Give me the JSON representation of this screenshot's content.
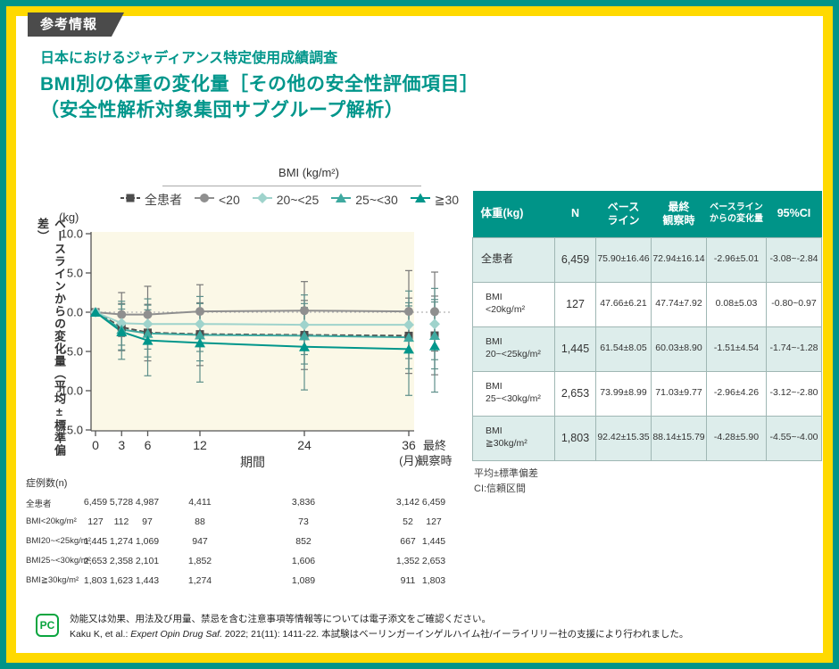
{
  "page": {
    "badge": "参考情報",
    "title_line1": "日本におけるジャディアンス特定使用成績調査",
    "title_line2": "BMI別の体重の変化量［その他の安全性評価項目］",
    "title_line3": "（安全性解析対象集団サブグループ解析）",
    "colors": {
      "teal": "#009488",
      "yellow": "#ffd900",
      "badge_gray": "#4b4b4b",
      "chart_bg": "#fbf8e7",
      "row_alt": "#ddedeb"
    },
    "footer": {
      "icon_label": "PC",
      "line1": "効能又は効果、用法及び用量、禁忌を含む注意事項等情報等については電子添文をご確認ください。",
      "ref_prefix": "Kaku K, et al.: ",
      "ref_italic": "Expert Opin Drug Saf.",
      "ref_suffix": " 2022; 21(11): 1411-22.  本試験はベーリンガーインゲルハイム社/イーライリリー社の支援により行われました。"
    }
  },
  "chart_data": {
    "type": "line",
    "legend_title": "BMI (kg/m²)",
    "xlabel": "期間",
    "x_unit": "(月)",
    "ylabel": "ベースラインからの変化量（平均±標準偏差）",
    "y_unit": "(kg)",
    "ylim": [
      -15,
      10
    ],
    "yticks": [
      10.0,
      5.0,
      0.0,
      -5.0,
      -10.0,
      -15.0
    ],
    "x_months": [
      0,
      3,
      6,
      12,
      24,
      36
    ],
    "final_label_lines": [
      "最終",
      "観察時"
    ],
    "series": [
      {
        "name": "全患者",
        "marker": "square",
        "color": "#4d4d4d",
        "line": "dashed",
        "means": [
          0,
          -1.9,
          -2.6,
          -2.8,
          -2.9,
          -3.0
        ],
        "final_mean": -2.96,
        "sd": [
          0,
          3.0,
          3.6,
          4.0,
          4.4,
          4.8
        ],
        "final_sd": 5.01
      },
      {
        "name": "<20",
        "marker": "circle",
        "color": "#8f8f8f",
        "line": "solid",
        "means": [
          0,
          -0.3,
          -0.3,
          0.1,
          0.2,
          0.1
        ],
        "final_mean": 0.08,
        "sd": [
          0,
          2.8,
          3.6,
          3.4,
          3.7,
          5.2
        ],
        "final_sd": 5.03
      },
      {
        "name": "20~<25",
        "marker": "diamond",
        "color": "#9fd3cc",
        "line": "solid",
        "means": [
          0,
          -1.4,
          -1.5,
          -1.5,
          -1.6,
          -1.6
        ],
        "final_mean": -1.51,
        "sd": [
          0,
          2.8,
          3.2,
          3.5,
          3.8,
          4.3
        ],
        "final_sd": 4.54
      },
      {
        "name": "25~<30",
        "marker": "triangle",
        "color": "#3fa9a0",
        "line": "solid",
        "means": [
          0,
          -2.2,
          -2.7,
          -2.9,
          -3.0,
          -3.2
        ],
        "final_mean": -2.96,
        "sd": [
          0,
          2.6,
          3.0,
          3.3,
          3.6,
          4.0
        ],
        "final_sd": 4.26
      },
      {
        "name": "≧30",
        "marker": "triangle",
        "color": "#00968b",
        "line": "solid",
        "means": [
          0,
          -2.5,
          -3.6,
          -3.9,
          -4.4,
          -4.7
        ],
        "final_mean": -4.28,
        "sd": [
          0,
          3.5,
          4.5,
          5.0,
          5.5,
          5.9
        ],
        "final_sd": 5.9
      }
    ]
  },
  "n_table": {
    "title": "症例数(n)",
    "rows": [
      {
        "label": "全患者",
        "values": [
          "6,459",
          "5,728",
          "4,987",
          "4,411",
          "3,836",
          "3,142",
          "6,459"
        ]
      },
      {
        "label": "BMI<20kg/m²",
        "values": [
          "127",
          "112",
          "97",
          "88",
          "73",
          "52",
          "127"
        ]
      },
      {
        "label": "BMI20~<25kg/m²",
        "values": [
          "1,445",
          "1,274",
          "1,069",
          "947",
          "852",
          "667",
          "1,445"
        ]
      },
      {
        "label": "BMI25~<30kg/m²",
        "values": [
          "2,653",
          "2,358",
          "2,101",
          "1,852",
          "1,606",
          "1,352",
          "2,653"
        ]
      },
      {
        "label": "BMI≧30kg/m²",
        "values": [
          "1,803",
          "1,623",
          "1,443",
          "1,274",
          "1,089",
          "911",
          "1,803"
        ]
      }
    ]
  },
  "summary_table": {
    "header_lines": [
      [
        "体重(kg)"
      ],
      [
        "N"
      ],
      [
        "ベース",
        "ライン"
      ],
      [
        "最終",
        "観察時"
      ],
      [
        "ベースライン",
        "からの変化量"
      ],
      [
        "95%CI"
      ]
    ],
    "rows": [
      {
        "label_lines": [
          "全患者"
        ],
        "n": "6,459",
        "baseline": "75.90±16.46",
        "final": "72.94±16.14",
        "change": "-2.96±5.01",
        "ci": "-3.08~-2.84"
      },
      {
        "label_lines": [
          "BMI",
          "<20kg/m²"
        ],
        "n": "127",
        "baseline": "47.66±6.21",
        "final": "47.74±7.92",
        "change": "0.08±5.03",
        "ci": "-0.80~0.97"
      },
      {
        "label_lines": [
          "BMI",
          "20~<25kg/m²"
        ],
        "n": "1,445",
        "baseline": "61.54±8.05",
        "final": "60.03±8.90",
        "change": "-1.51±4.54",
        "ci": "-1.74~-1.28"
      },
      {
        "label_lines": [
          "BMI",
          "25~<30kg/m²"
        ],
        "n": "2,653",
        "baseline": "73.99±8.99",
        "final": "71.03±9.77",
        "change": "-2.96±4.26",
        "ci": "-3.12~-2.80"
      },
      {
        "label_lines": [
          "BMI",
          "≧30kg/m²"
        ],
        "n": "1,803",
        "baseline": "92.42±15.35",
        "final": "88.14±15.79",
        "change": "-4.28±5.90",
        "ci": "-4.55~-4.00"
      }
    ],
    "footnote1": "平均±標準偏差",
    "footnote2": "CI:信頼区間"
  }
}
